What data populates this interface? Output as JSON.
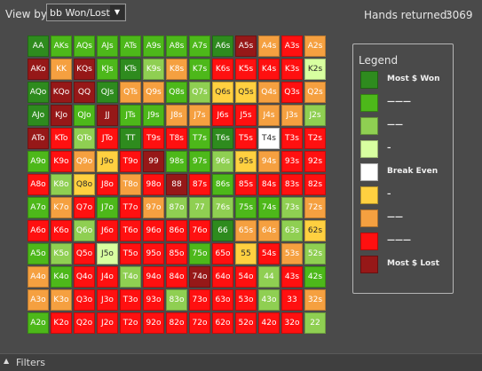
{
  "toolbar": {
    "view_by_label": "View by:",
    "view_by_value": "bb Won/Lost",
    "hands_label": "Hands returned:",
    "hands_value": "3069"
  },
  "colors": {
    "dg": "#2e8b1e",
    "mg": "#4db81a",
    "lg": "#8fcf52",
    "vl": "#d8ffa0",
    "wh": "#ffffff",
    "ly": "#ffd040",
    "or": "#f5a040",
    "rd": "#ff1010",
    "dr": "#961818"
  },
  "grid": {
    "rows": [
      [
        [
          "AA",
          "dg"
        ],
        [
          "AKs",
          "mg"
        ],
        [
          "AQs",
          "mg"
        ],
        [
          "AJs",
          "mg"
        ],
        [
          "ATs",
          "mg"
        ],
        [
          "A9s",
          "mg"
        ],
        [
          "A8s",
          "mg"
        ],
        [
          "A7s",
          "mg"
        ],
        [
          "A6s",
          "dg"
        ],
        [
          "A5s",
          "dr"
        ],
        [
          "A4s",
          "or"
        ],
        [
          "A3s",
          "rd"
        ],
        [
          "A2s",
          "or"
        ]
      ],
      [
        [
          "AKo",
          "dr"
        ],
        [
          "KK",
          "or"
        ],
        [
          "KQs",
          "dr"
        ],
        [
          "KJs",
          "mg"
        ],
        [
          "KTs",
          "dg"
        ],
        [
          "K9s",
          "lg"
        ],
        [
          "K8s",
          "or"
        ],
        [
          "K7s",
          "mg"
        ],
        [
          "K6s",
          "rd"
        ],
        [
          "K5s",
          "rd"
        ],
        [
          "K4s",
          "rd"
        ],
        [
          "K3s",
          "rd"
        ],
        [
          "K2s",
          "vl"
        ]
      ],
      [
        [
          "AQo",
          "dg"
        ],
        [
          "KQo",
          "dr"
        ],
        [
          "QQ",
          "dr"
        ],
        [
          "QJs",
          "dg"
        ],
        [
          "QTs",
          "or"
        ],
        [
          "Q9s",
          "or"
        ],
        [
          "Q8s",
          "mg"
        ],
        [
          "Q7s",
          "lg"
        ],
        [
          "Q6s",
          "ly"
        ],
        [
          "Q5s",
          "ly"
        ],
        [
          "Q4s",
          "or"
        ],
        [
          "Q3s",
          "rd"
        ],
        [
          "Q2s",
          "or"
        ]
      ],
      [
        [
          "AJo",
          "dg"
        ],
        [
          "KJo",
          "dr"
        ],
        [
          "QJo",
          "mg"
        ],
        [
          "JJ",
          "dr"
        ],
        [
          "JTs",
          "mg"
        ],
        [
          "J9s",
          "mg"
        ],
        [
          "J8s",
          "or"
        ],
        [
          "J7s",
          "or"
        ],
        [
          "J6s",
          "rd"
        ],
        [
          "J5s",
          "rd"
        ],
        [
          "J4s",
          "or"
        ],
        [
          "J3s",
          "or"
        ],
        [
          "J2s",
          "lg"
        ]
      ],
      [
        [
          "ATo",
          "dr"
        ],
        [
          "KTo",
          "rd"
        ],
        [
          "QTo",
          "lg"
        ],
        [
          "JTo",
          "rd"
        ],
        [
          "TT",
          "dg"
        ],
        [
          "T9s",
          "rd"
        ],
        [
          "T8s",
          "rd"
        ],
        [
          "T7s",
          "mg"
        ],
        [
          "T6s",
          "dg"
        ],
        [
          "T5s",
          "rd"
        ],
        [
          "T4s",
          "wh"
        ],
        [
          "T3s",
          "rd"
        ],
        [
          "T2s",
          "rd"
        ]
      ],
      [
        [
          "A9o",
          "mg"
        ],
        [
          "K9o",
          "rd"
        ],
        [
          "Q9o",
          "or"
        ],
        [
          "J9o",
          "ly"
        ],
        [
          "T9o",
          "rd"
        ],
        [
          "99",
          "dr"
        ],
        [
          "98s",
          "mg"
        ],
        [
          "97s",
          "mg"
        ],
        [
          "96s",
          "lg"
        ],
        [
          "95s",
          "ly"
        ],
        [
          "94s",
          "or"
        ],
        [
          "93s",
          "rd"
        ],
        [
          "92s",
          "rd"
        ]
      ],
      [
        [
          "A8o",
          "rd"
        ],
        [
          "K8o",
          "lg"
        ],
        [
          "Q8o",
          "ly"
        ],
        [
          "J8o",
          "rd"
        ],
        [
          "T8o",
          "or"
        ],
        [
          "98o",
          "rd"
        ],
        [
          "88",
          "dr"
        ],
        [
          "87s",
          "rd"
        ],
        [
          "86s",
          "mg"
        ],
        [
          "85s",
          "rd"
        ],
        [
          "84s",
          "rd"
        ],
        [
          "83s",
          "rd"
        ],
        [
          "82s",
          "rd"
        ]
      ],
      [
        [
          "A7o",
          "mg"
        ],
        [
          "K7o",
          "or"
        ],
        [
          "Q7o",
          "rd"
        ],
        [
          "J7o",
          "mg"
        ],
        [
          "T7o",
          "rd"
        ],
        [
          "97o",
          "or"
        ],
        [
          "87o",
          "lg"
        ],
        [
          "77",
          "lg"
        ],
        [
          "76s",
          "lg"
        ],
        [
          "75s",
          "mg"
        ],
        [
          "74s",
          "mg"
        ],
        [
          "73s",
          "lg"
        ],
        [
          "72s",
          "or"
        ]
      ],
      [
        [
          "A6o",
          "rd"
        ],
        [
          "K6o",
          "rd"
        ],
        [
          "Q6o",
          "lg"
        ],
        [
          "J6o",
          "rd"
        ],
        [
          "T6o",
          "rd"
        ],
        [
          "96o",
          "rd"
        ],
        [
          "86o",
          "rd"
        ],
        [
          "76o",
          "rd"
        ],
        [
          "66",
          "dg"
        ],
        [
          "65s",
          "or"
        ],
        [
          "64s",
          "or"
        ],
        [
          "63s",
          "lg"
        ],
        [
          "62s",
          "ly"
        ]
      ],
      [
        [
          "A5o",
          "mg"
        ],
        [
          "K5o",
          "lg"
        ],
        [
          "Q5o",
          "rd"
        ],
        [
          "J5o",
          "vl"
        ],
        [
          "T5o",
          "rd"
        ],
        [
          "95o",
          "rd"
        ],
        [
          "85o",
          "rd"
        ],
        [
          "75o",
          "mg"
        ],
        [
          "65o",
          "rd"
        ],
        [
          "55",
          "ly"
        ],
        [
          "54s",
          "rd"
        ],
        [
          "53s",
          "or"
        ],
        [
          "52s",
          "lg"
        ]
      ],
      [
        [
          "A4o",
          "or"
        ],
        [
          "K4o",
          "mg"
        ],
        [
          "Q4o",
          "rd"
        ],
        [
          "J4o",
          "rd"
        ],
        [
          "T4o",
          "lg"
        ],
        [
          "94o",
          "rd"
        ],
        [
          "84o",
          "rd"
        ],
        [
          "74o",
          "dr"
        ],
        [
          "64o",
          "rd"
        ],
        [
          "54o",
          "rd"
        ],
        [
          "44",
          "lg"
        ],
        [
          "43s",
          "rd"
        ],
        [
          "42s",
          "mg"
        ]
      ],
      [
        [
          "A3o",
          "or"
        ],
        [
          "K3o",
          "or"
        ],
        [
          "Q3o",
          "rd"
        ],
        [
          "J3o",
          "rd"
        ],
        [
          "T3o",
          "rd"
        ],
        [
          "93o",
          "rd"
        ],
        [
          "83o",
          "lg"
        ],
        [
          "73o",
          "rd"
        ],
        [
          "63o",
          "rd"
        ],
        [
          "53o",
          "rd"
        ],
        [
          "43o",
          "lg"
        ],
        [
          "33",
          "rd"
        ],
        [
          "32s",
          "or"
        ]
      ],
      [
        [
          "A2o",
          "mg"
        ],
        [
          "K2o",
          "rd"
        ],
        [
          "Q2o",
          "rd"
        ],
        [
          "J2o",
          "rd"
        ],
        [
          "T2o",
          "rd"
        ],
        [
          "92o",
          "rd"
        ],
        [
          "82o",
          "rd"
        ],
        [
          "72o",
          "rd"
        ],
        [
          "62o",
          "rd"
        ],
        [
          "52o",
          "rd"
        ],
        [
          "42o",
          "rd"
        ],
        [
          "32o",
          "rd"
        ],
        [
          "22",
          "lg"
        ]
      ]
    ]
  },
  "legend": {
    "title": "Legend",
    "items": [
      {
        "color": "dg",
        "label": "Most $ Won"
      },
      {
        "color": "mg",
        "label": "———"
      },
      {
        "color": "lg",
        "label": "——"
      },
      {
        "color": "vl",
        "label": "–"
      },
      {
        "color": "wh",
        "label": "Break Even"
      },
      {
        "color": "ly",
        "label": "–"
      },
      {
        "color": "or",
        "label": "——"
      },
      {
        "color": "rd",
        "label": "———"
      },
      {
        "color": "dr",
        "label": "Most $ Lost"
      }
    ]
  },
  "footer": {
    "label": "Filters"
  }
}
